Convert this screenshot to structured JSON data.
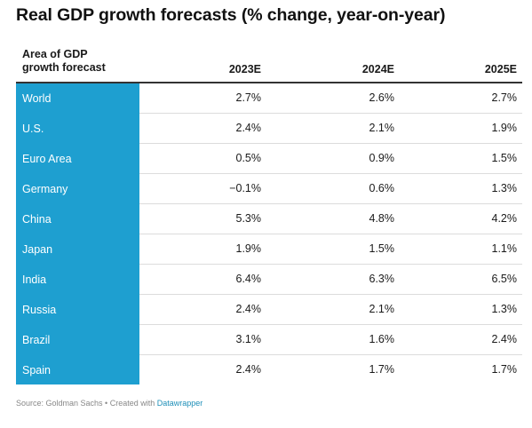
{
  "title": "Real GDP growth forecasts (% change, year-on-year)",
  "chart_data": {
    "type": "table",
    "columns": [
      "Area of GDP growth forecast",
      "2023E",
      "2024E",
      "2025E"
    ],
    "header_area_line1": "Area of GDP",
    "header_area_line2": "growth forecast",
    "rows": [
      {
        "name": "World",
        "values": [
          "2.7%",
          "2.6%",
          "2.7%"
        ]
      },
      {
        "name": "U.S.",
        "values": [
          "2.4%",
          "2.1%",
          "1.9%"
        ]
      },
      {
        "name": "Euro Area",
        "values": [
          "0.5%",
          "0.9%",
          "1.5%"
        ]
      },
      {
        "name": "Germany",
        "values": [
          "−0.1%",
          "0.6%",
          "1.3%"
        ]
      },
      {
        "name": "China",
        "values": [
          "5.3%",
          "4.8%",
          "4.2%"
        ]
      },
      {
        "name": "Japan",
        "values": [
          "1.9%",
          "1.5%",
          "1.1%"
        ]
      },
      {
        "name": "India",
        "values": [
          "6.4%",
          "6.3%",
          "6.5%"
        ]
      },
      {
        "name": "Russia",
        "values": [
          "2.4%",
          "2.1%",
          "1.3%"
        ]
      },
      {
        "name": "Brazil",
        "values": [
          "3.1%",
          "1.6%",
          "2.4%"
        ]
      },
      {
        "name": "Spain",
        "values": [
          "2.4%",
          "1.7%",
          "1.7%"
        ]
      }
    ]
  },
  "footer": {
    "source_text": "Source: Goldman Sachs • Created with ",
    "link_text": "Datawrapper"
  },
  "colors": {
    "first_column_bg": "#1e9fd0",
    "link": "#1e8fb8"
  }
}
